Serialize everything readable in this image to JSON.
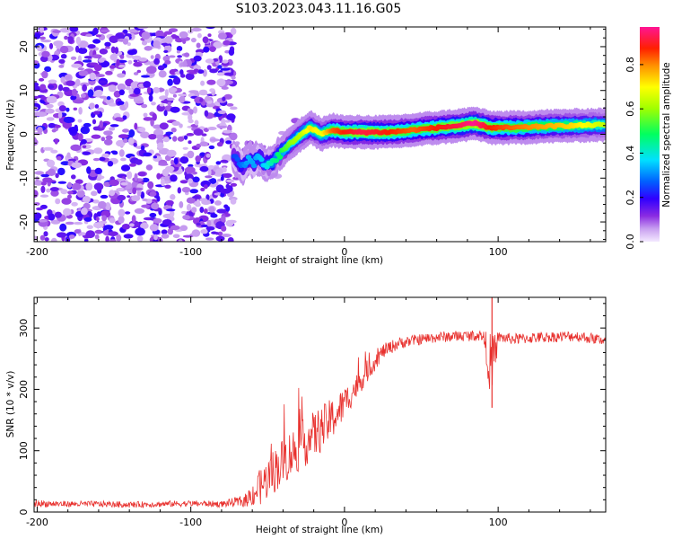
{
  "figure_title": "S103.2023.043.11.16.G05",
  "chart_data": [
    {
      "type": "heatmap",
      "title": "S103.2023.043.11.16.G05",
      "xlabel": "Height of straight line (km)",
      "ylabel": "Frequency (Hz)",
      "xlim": [
        -202,
        170
      ],
      "ylim": [
        -24.5,
        24.5
      ],
      "xticks": [
        -200,
        -100,
        0,
        100
      ],
      "yticks": [
        -20,
        -10,
        0,
        10,
        20
      ],
      "noise_region_x": [
        -202,
        -72
      ],
      "ridge": {
        "x": [
          -72,
          -66,
          -62,
          -59,
          -56,
          -52,
          -47,
          -42,
          -35,
          -28,
          -22,
          -15,
          -8,
          0,
          10,
          20,
          30,
          45,
          60,
          75,
          85,
          95,
          110,
          130,
          150,
          170
        ],
        "y": [
          -5,
          -7.5,
          -5.5,
          -6.5,
          -5,
          -7,
          -6.5,
          -4.5,
          -2,
          0,
          1.5,
          0,
          1,
          0.5,
          0.5,
          0.5,
          0.5,
          1,
          1.5,
          2,
          2.5,
          1.5,
          1.5,
          1.8,
          2,
          2.2
        ],
        "amplitude": [
          0.2,
          0.25,
          0.3,
          0.28,
          0.3,
          0.32,
          0.4,
          0.45,
          0.55,
          0.6,
          0.7,
          0.65,
          0.8,
          0.85,
          0.9,
          0.88,
          0.85,
          0.8,
          0.85,
          0.9,
          0.95,
          0.85,
          0.8,
          0.75,
          0.7,
          0.6
        ]
      },
      "colorbar": {
        "label": "Normalized spectral amplitude",
        "range": [
          0,
          0.97
        ],
        "ticks": [
          0.0,
          0.2,
          0.4,
          0.6,
          0.8
        ],
        "tick_labels": [
          "0.0",
          "0.2",
          "0.4",
          "0.6",
          "0.8"
        ],
        "colors": [
          "#f4e8ff",
          "#8a2be2",
          "#0000ff",
          "#00ffff",
          "#00ff00",
          "#ffff00",
          "#ff8c00",
          "#ff0000",
          "#ff1493"
        ]
      }
    },
    {
      "type": "line",
      "xlabel": "Height of straight line (km)",
      "ylabel": "SNR (10 * v/v)",
      "xlim": [
        -202,
        170
      ],
      "ylim": [
        0,
        350
      ],
      "xticks": [
        -200,
        -100,
        0,
        100
      ],
      "yticks": [
        0,
        100,
        200,
        300
      ],
      "line_color": "#e8312e",
      "series": [
        {
          "name": "SNR",
          "x": [
            -202,
            -180,
            -160,
            -140,
            -120,
            -100,
            -80,
            -65,
            -55,
            -45,
            -35,
            -25,
            -15,
            -5,
            5,
            15,
            25,
            35,
            45,
            60,
            75,
            90,
            96,
            100,
            110,
            130,
            150,
            170
          ],
          "values": [
            14,
            13,
            13,
            12,
            13,
            14,
            13,
            18,
            40,
            70,
            95,
            115,
            135,
            160,
            195,
            230,
            262,
            275,
            280,
            285,
            287,
            288,
            230,
            285,
            282,
            285,
            287,
            280
          ],
          "noise_amplitude": [
            6,
            5,
            5,
            5,
            5,
            5,
            5,
            10,
            30,
            38,
            40,
            40,
            38,
            32,
            22,
            18,
            12,
            10,
            9,
            9,
            9,
            9,
            60,
            9,
            9,
            9,
            9,
            9
          ]
        }
      ],
      "spikes": [
        {
          "x": 96,
          "y_high": 350,
          "y_low": 170
        }
      ]
    }
  ]
}
